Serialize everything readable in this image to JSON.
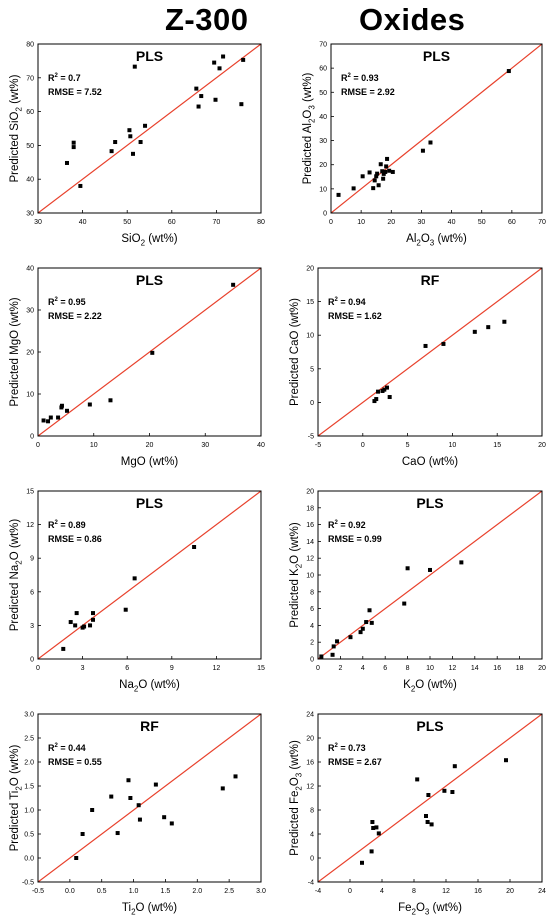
{
  "header": {
    "left_title": "Z-300",
    "right_title": "Oxides"
  },
  "chart_data": [
    {
      "type": "scatter",
      "method": "PLS",
      "xlabel": "SiO<sub>2</sub> (wt%)",
      "ylabel": "Predicted SiO<sub>2</sub> (wt%)",
      "stats": {
        "r2": "0.7",
        "rmse": "7.52"
      },
      "xlim": [
        30,
        80
      ],
      "ylim": [
        30,
        80
      ],
      "xticks": [
        "30",
        "40",
        "50",
        "60",
        "70",
        "80"
      ],
      "yticks": [
        "30",
        "40",
        "50",
        "60",
        "70",
        "80"
      ],
      "points": [
        [
          36.5,
          44.8
        ],
        [
          38,
          49.5
        ],
        [
          38,
          50.8
        ],
        [
          39.5,
          38
        ],
        [
          46.5,
          48.3
        ],
        [
          47.3,
          51
        ],
        [
          50.5,
          54.5
        ],
        [
          50.7,
          52.7
        ],
        [
          51.3,
          47.5
        ],
        [
          51.7,
          73.3
        ],
        [
          53,
          51
        ],
        [
          54,
          55.8
        ],
        [
          65.5,
          66.8
        ],
        [
          66,
          61.5
        ],
        [
          66.6,
          64.6
        ],
        [
          69.5,
          74.5
        ],
        [
          69.8,
          63.5
        ],
        [
          70.7,
          72.8
        ],
        [
          71.5,
          76.3
        ],
        [
          75.6,
          62.2
        ],
        [
          76,
          75.3
        ]
      ],
      "identity_line": true
    },
    {
      "type": "scatter",
      "method": "PLS",
      "xlabel": "Al<sub>2</sub>O<sub>3</sub> (wt%)",
      "ylabel": "Predicted Al<sub>2</sub>O<sub>3</sub> (wt%)",
      "stats": {
        "r2": "0.93",
        "rmse": "2.92"
      },
      "xlim": [
        0,
        70
      ],
      "ylim": [
        0,
        70
      ],
      "xticks": [
        "0",
        "10",
        "20",
        "30",
        "40",
        "50",
        "60",
        "70"
      ],
      "yticks": [
        "0",
        "10",
        "20",
        "30",
        "40",
        "50",
        "60",
        "70"
      ],
      "points": [
        [
          2.5,
          7.5
        ],
        [
          7.5,
          10.2
        ],
        [
          10.5,
          15.2
        ],
        [
          12.8,
          16.8
        ],
        [
          14,
          10.3
        ],
        [
          14.5,
          13.5
        ],
        [
          15,
          15.2
        ],
        [
          15.3,
          16.3
        ],
        [
          15.8,
          11.5
        ],
        [
          16.5,
          20.2
        ],
        [
          17,
          17.3
        ],
        [
          17.5,
          16.2
        ],
        [
          17.3,
          14.2
        ],
        [
          18,
          17
        ],
        [
          18.3,
          19.3
        ],
        [
          18.6,
          22.4
        ],
        [
          19.3,
          17.5
        ],
        [
          20.5,
          17
        ],
        [
          30.5,
          25.8
        ],
        [
          33,
          29.2
        ],
        [
          59,
          58.8
        ]
      ],
      "identity_line": true
    },
    {
      "type": "scatter",
      "method": "PLS",
      "xlabel": "MgO (wt%)",
      "ylabel": "Predicted MgO (wt%)",
      "stats": {
        "r2": "0.95",
        "rmse": "2.22"
      },
      "xlim": [
        0,
        40
      ],
      "ylim": [
        0,
        40
      ],
      "xticks": [
        "0",
        "10",
        "20",
        "30",
        "40"
      ],
      "yticks": [
        "0",
        "10",
        "20",
        "30",
        "40"
      ],
      "points": [
        [
          1,
          3.7
        ],
        [
          1.8,
          3.5
        ],
        [
          2.3,
          4.4
        ],
        [
          3.6,
          4.4
        ],
        [
          4.2,
          6.8
        ],
        [
          4.3,
          7.2
        ],
        [
          5.2,
          6
        ],
        [
          9.3,
          7.5
        ],
        [
          13,
          8.5
        ],
        [
          20.5,
          19.8
        ],
        [
          35,
          36
        ]
      ],
      "identity_line": true
    },
    {
      "type": "scatter",
      "method": "RF",
      "xlabel": "CaO (wt%)",
      "ylabel": "Predicted CaO (wt%)",
      "stats": {
        "r2": "0.94",
        "rmse": "1.62"
      },
      "xlim": [
        -5,
        20
      ],
      "ylim": [
        -5,
        20
      ],
      "xticks": [
        "-5",
        "0",
        "5",
        "10",
        "15",
        "20"
      ],
      "yticks": [
        "-5",
        "0",
        "5",
        "10",
        "15",
        "20"
      ],
      "points": [
        [
          1.3,
          0.2
        ],
        [
          1.5,
          0.5
        ],
        [
          1.7,
          1.6
        ],
        [
          2.2,
          1.7
        ],
        [
          2.4,
          1.9
        ],
        [
          2.7,
          2.2
        ],
        [
          3,
          0.8
        ],
        [
          7,
          8.4
        ],
        [
          9,
          8.7
        ],
        [
          12.5,
          10.5
        ],
        [
          14,
          11.2
        ],
        [
          15.8,
          12
        ]
      ],
      "identity_line": true
    },
    {
      "type": "scatter",
      "method": "PLS",
      "xlabel": "Na<sub>2</sub>O (wt%)",
      "ylabel": "Predicted Na<sub>2</sub>O (wt%)",
      "stats": {
        "r2": "0.89",
        "rmse": "0.86"
      },
      "xlim": [
        0,
        15
      ],
      "ylim": [
        0,
        15
      ],
      "xticks": [
        "0",
        "3",
        "6",
        "9",
        "12",
        "15"
      ],
      "yticks": [
        "0",
        "3",
        "6",
        "9",
        "12",
        "15"
      ],
      "points": [
        [
          1.7,
          0.9
        ],
        [
          2.2,
          3.3
        ],
        [
          2.5,
          3
        ],
        [
          2.6,
          4.1
        ],
        [
          3,
          2.8
        ],
        [
          3.1,
          2.9
        ],
        [
          3.5,
          3
        ],
        [
          3.7,
          3.5
        ],
        [
          3.7,
          4.1
        ],
        [
          5.9,
          4.4
        ],
        [
          6.5,
          7.2
        ],
        [
          10.5,
          10
        ]
      ],
      "identity_line": true
    },
    {
      "type": "scatter",
      "method": "PLS",
      "xlabel": "K<sub>2</sub>O (wt%)",
      "ylabel": "Predicted K<sub>2</sub>O (wt%)",
      "stats": {
        "r2": "0.92",
        "rmse": "0.99"
      },
      "xlim": [
        0,
        20
      ],
      "ylim": [
        0,
        20
      ],
      "xticks": [
        "0",
        "2",
        "4",
        "6",
        "8",
        "10",
        "12",
        "14",
        "16",
        "18",
        "20"
      ],
      "yticks": [
        "0",
        "2",
        "4",
        "6",
        "8",
        "10",
        "12",
        "14",
        "16",
        "18",
        "20"
      ],
      "points": [
        [
          0.3,
          0.3
        ],
        [
          1.3,
          0.5
        ],
        [
          1.4,
          1.5
        ],
        [
          1.7,
          2.1
        ],
        [
          2.9,
          2.6
        ],
        [
          3.8,
          3.2
        ],
        [
          4,
          3.6
        ],
        [
          4.3,
          4.4
        ],
        [
          4.6,
          5.8
        ],
        [
          4.8,
          4.3
        ],
        [
          7.7,
          6.6
        ],
        [
          8,
          10.8
        ],
        [
          10,
          10.6
        ],
        [
          12.8,
          11.5
        ]
      ],
      "identity_line": true
    },
    {
      "type": "scatter",
      "method": "RF",
      "xlabel": "Ti<sub>2</sub>O (wt%)",
      "ylabel": "Predicted Ti<sub>2</sub>O (wt%)",
      "stats": {
        "r2": "0.44",
        "rmse": "0.55"
      },
      "xlim": [
        -0.5,
        3.0
      ],
      "ylim": [
        -0.5,
        3.0
      ],
      "xticks": [
        "-0.5",
        "0.0",
        "0.5",
        "1.0",
        "1.5",
        "2.0",
        "2.5",
        "3.0"
      ],
      "yticks": [
        "-0.5",
        "0.0",
        "0.5",
        "1.0",
        "1.5",
        "2.0",
        "2.5",
        "3.0"
      ],
      "points": [
        [
          0.1,
          0
        ],
        [
          0.2,
          0.5
        ],
        [
          0.35,
          1
        ],
        [
          0.65,
          1.28
        ],
        [
          0.75,
          0.52
        ],
        [
          0.92,
          1.62
        ],
        [
          0.95,
          1.25
        ],
        [
          1.08,
          1.1
        ],
        [
          1.1,
          0.8
        ],
        [
          1.35,
          1.53
        ],
        [
          1.48,
          0.85
        ],
        [
          1.6,
          0.72
        ],
        [
          2.4,
          1.45
        ],
        [
          2.6,
          1.7
        ]
      ],
      "identity_line": true
    },
    {
      "type": "scatter",
      "method": "PLS",
      "xlabel": "Fe<sub>2</sub>O<sub>3</sub> (wt%)",
      "ylabel": "Predicted Fe<sub>2</sub>O<sub>3</sub> (wt%)",
      "stats": {
        "r2": "0.73",
        "rmse": "2.67"
      },
      "xlim": [
        -4,
        24
      ],
      "ylim": [
        -4,
        24
      ],
      "xticks": [
        "-4",
        "0",
        "4",
        "8",
        "12",
        "16",
        "20",
        "24"
      ],
      "yticks": [
        "-4",
        "0",
        "4",
        "8",
        "12",
        "16",
        "20",
        "24"
      ],
      "points": [
        [
          1.5,
          -0.8
        ],
        [
          2.7,
          1.1
        ],
        [
          2.8,
          6
        ],
        [
          2.9,
          5
        ],
        [
          3.3,
          5.1
        ],
        [
          3.6,
          4.1
        ],
        [
          8.4,
          13.1
        ],
        [
          9.5,
          7
        ],
        [
          9.7,
          6
        ],
        [
          9.8,
          10.5
        ],
        [
          10.2,
          5.6
        ],
        [
          11.8,
          11.2
        ],
        [
          12.8,
          11
        ],
        [
          13.1,
          15.3
        ],
        [
          19.5,
          16.3
        ]
      ],
      "identity_line": true
    }
  ]
}
